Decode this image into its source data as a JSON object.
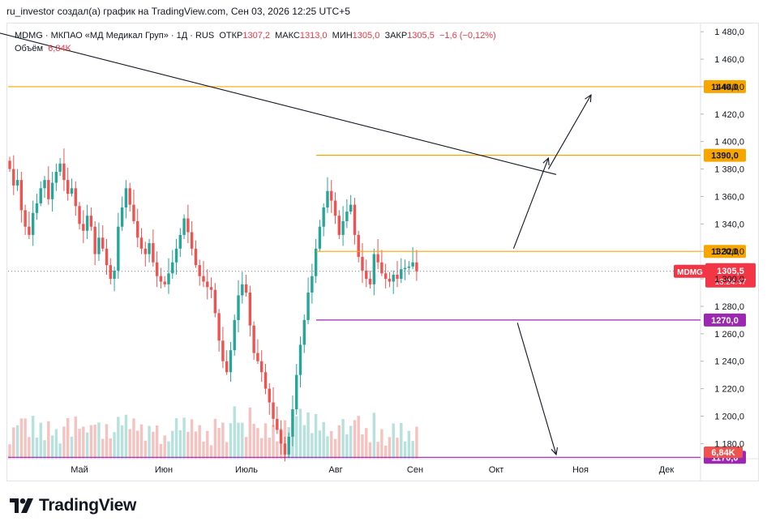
{
  "caption": "ru_investor создал(а) график на TradingView.com, Сен 03, 2026 12:25 UTC+5",
  "legend": {
    "line1": {
      "symbol": "MDMG · МКПАО «МД Медикал Груп» · 1Д · RUS",
      "open_label": "ОТКР",
      "open": "1307,2",
      "high_label": "МАКС",
      "high": "1313,0",
      "low_label": "МИН",
      "low": "1305,0",
      "close_label": "ЗАКР",
      "close": "1305,5",
      "change": "−1,6 (−0,12%)"
    },
    "line2": {
      "volume_label": "Объём",
      "volume": "6,84K"
    }
  },
  "brand": {
    "name": "TradingView",
    "icon": "tradingview-logo-icon"
  },
  "colors": {
    "up": "#26a69a",
    "down": "#ef5350",
    "orange": "#f7a600",
    "purple": "#9c27b0",
    "price": "#f23645"
  },
  "chart_data": {
    "type": "candlestick",
    "symbol": "MDMG",
    "timeframe": "1Д",
    "y_axis": {
      "ticks": [
        "1 180,0",
        "1 200,0",
        "1 220,0",
        "1 240,0",
        "1 260,0",
        "1 280,0",
        "1 300,0",
        "1 320,0",
        "1 340,0",
        "1 360,0",
        "1 380,0",
        "1 400,0",
        "1 420,0",
        "1 440,0",
        "1 460,0",
        "1 480,0"
      ],
      "tick_values": [
        1180,
        1200,
        1220,
        1240,
        1260,
        1280,
        1300,
        1320,
        1340,
        1360,
        1380,
        1400,
        1420,
        1440,
        1460,
        1480
      ],
      "range": [
        1169,
        1486
      ]
    },
    "x_axis": {
      "ticks": [
        "Май",
        "Июн",
        "Июль",
        "Авг",
        "Сен",
        "Окт",
        "Ноя",
        "Дек"
      ]
    },
    "levels": [
      {
        "value": 1440,
        "label": "1440,0",
        "color": "#f7a600"
      },
      {
        "value": 1390,
        "label": "1390,0",
        "color": "#f7a600"
      },
      {
        "value": 1320,
        "label": "1320,0",
        "color": "#f7a600"
      },
      {
        "value": 1270,
        "label": "1270,0",
        "color": "#9c27b0"
      },
      {
        "value": 1170,
        "label": "1170,0",
        "color": "#9c27b0"
      }
    ],
    "last_price": {
      "symbol": "MDMG",
      "value": 1305.5,
      "label": "1305,5",
      "countdown": "13:24:47"
    },
    "volume_label": "6,84K",
    "closes": [
      1380,
      1368,
      1372,
      1350,
      1338,
      1332,
      1348,
      1355,
      1366,
      1372,
      1358,
      1370,
      1378,
      1384,
      1372,
      1362,
      1366,
      1353,
      1340,
      1335,
      1346,
      1338,
      1318,
      1330,
      1322,
      1310,
      1300,
      1306,
      1338,
      1352,
      1366,
      1354,
      1342,
      1330,
      1322,
      1318,
      1326,
      1312,
      1302,
      1298,
      1296,
      1304,
      1312,
      1322,
      1332,
      1344,
      1334,
      1322,
      1310,
      1302,
      1298,
      1294,
      1292,
      1275,
      1255,
      1240,
      1232,
      1248,
      1270,
      1288,
      1296,
      1290,
      1266,
      1246,
      1240,
      1232,
      1220,
      1210,
      1198,
      1190,
      1180,
      1172,
      1185,
      1205,
      1230,
      1252,
      1270,
      1290,
      1302,
      1322,
      1338,
      1352,
      1364,
      1357,
      1346,
      1332,
      1342,
      1349,
      1354,
      1332,
      1316,
      1306,
      1300,
      1296,
      1318,
      1312,
      1304,
      1300,
      1298,
      1303,
      1300,
      1307,
      1308,
      1309,
      1312,
      1305.5
    ],
    "trendline": {
      "from": [
        -4,
        1480
      ],
      "to": [
        141,
        1376
      ]
    },
    "arrows": [
      {
        "from": [
          130,
          1322
        ],
        "to": [
          139,
          1388
        ]
      },
      {
        "from": [
          139,
          1380
        ],
        "to": [
          150,
          1434
        ]
      },
      {
        "from": [
          131,
          1268
        ],
        "to": [
          141,
          1172
        ]
      }
    ]
  }
}
